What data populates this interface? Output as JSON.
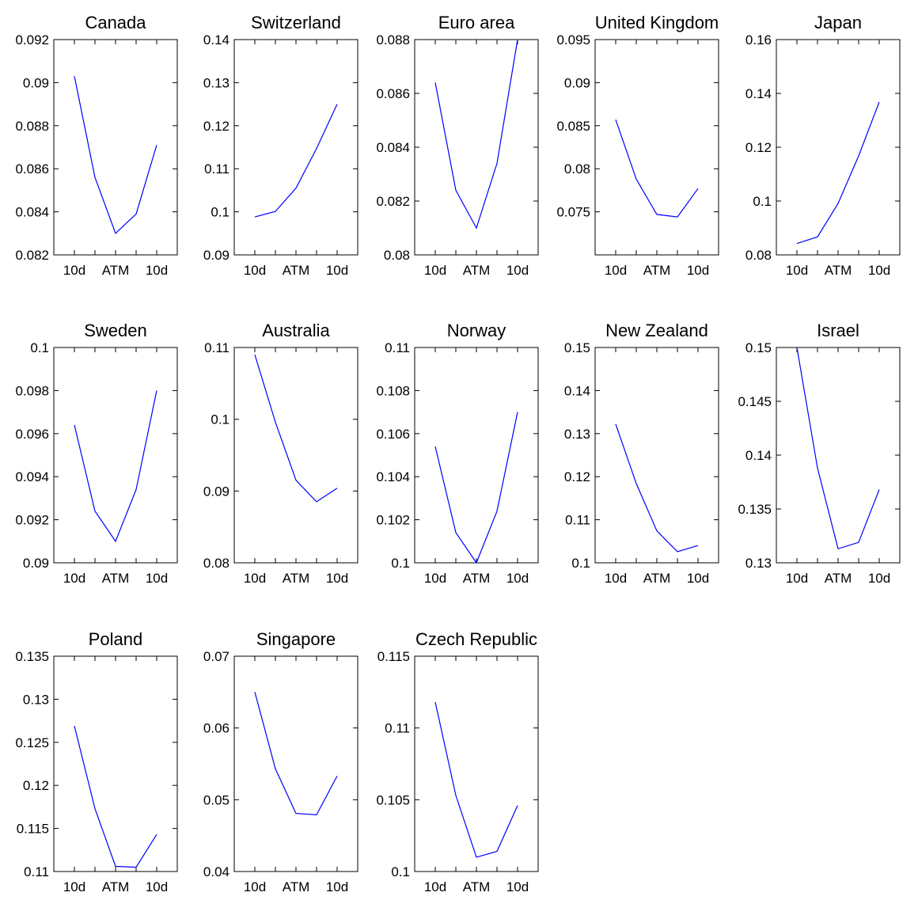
{
  "figure": {
    "line_color": "#0000ff",
    "axis_color": "#000000",
    "background": "#ffffff"
  },
  "chart_data": [
    {
      "type": "line",
      "title": "Canada",
      "categories": [
        "10d",
        "",
        "ATM",
        "",
        "10d"
      ],
      "values": [
        0.0903,
        0.0856,
        0.083,
        0.0839,
        0.0871
      ],
      "ylim": [
        0.082,
        0.092
      ],
      "yticks": [
        "0.082",
        "0.084",
        "0.086",
        "0.088",
        "0.09",
        "0.092"
      ],
      "grid": false
    },
    {
      "type": "line",
      "title": "Switzerland",
      "categories": [
        "10d",
        "",
        "ATM",
        "",
        "10d"
      ],
      "values": [
        0.0988,
        0.1001,
        0.1055,
        0.1147,
        0.125
      ],
      "ylim": [
        0.09,
        0.14
      ],
      "yticks": [
        "0.09",
        "0.1",
        "0.11",
        "0.12",
        "0.13",
        "0.14"
      ],
      "grid": false
    },
    {
      "type": "line",
      "title": "Euro area",
      "categories": [
        "10d",
        "",
        "ATM",
        "",
        "10d"
      ],
      "values": [
        0.0864,
        0.0824,
        0.081,
        0.0834,
        0.088
      ],
      "ylim": [
        0.08,
        0.088
      ],
      "yticks": [
        "0.08",
        "0.082",
        "0.084",
        "0.086",
        "0.088"
      ],
      "grid": false
    },
    {
      "type": "line",
      "title": "United Kingdom",
      "categories": [
        "10d",
        "",
        "ATM",
        "",
        "10d"
      ],
      "values": [
        0.0857,
        0.0788,
        0.0747,
        0.0744,
        0.0777
      ],
      "ylim": [
        0.07,
        0.095
      ],
      "yticks": [
        "",
        "0.075",
        "0.08",
        "0.085",
        "0.09",
        "0.095"
      ],
      "grid": false
    },
    {
      "type": "line",
      "title": "Japan",
      "categories": [
        "10d",
        "",
        "ATM",
        "",
        "10d"
      ],
      "values": [
        0.0842,
        0.0867,
        0.0991,
        0.1168,
        0.1368
      ],
      "ylim": [
        0.08,
        0.16
      ],
      "yticks": [
        "0.08",
        "0.1",
        "0.12",
        "0.14",
        "0.16"
      ],
      "grid": false
    },
    {
      "type": "line",
      "title": "Sweden",
      "categories": [
        "10d",
        "",
        "ATM",
        "",
        "10d"
      ],
      "values": [
        0.0964,
        0.0924,
        0.091,
        0.0934,
        0.098
      ],
      "ylim": [
        0.09,
        0.1
      ],
      "yticks": [
        "0.09",
        "0.092",
        "0.094",
        "0.096",
        "0.098",
        "0.1"
      ],
      "grid": false
    },
    {
      "type": "line",
      "title": "Australia",
      "categories": [
        "10d",
        "",
        "ATM",
        "",
        "10d"
      ],
      "values": [
        0.109,
        0.0996,
        0.0915,
        0.0885,
        0.0904
      ],
      "ylim": [
        0.08,
        0.11
      ],
      "yticks": [
        "0.08",
        "0.09",
        "0.1",
        "0.11"
      ],
      "grid": false
    },
    {
      "type": "line",
      "title": "Norway",
      "categories": [
        "10d",
        "",
        "ATM",
        "",
        "10d"
      ],
      "values": [
        0.1054,
        0.1014,
        0.1,
        0.1024,
        0.107
      ],
      "ylim": [
        0.1,
        0.11
      ],
      "yticks": [
        "0.1",
        "0.102",
        "0.104",
        "0.106",
        "0.108",
        "0.11"
      ],
      "grid": false
    },
    {
      "type": "line",
      "title": "New Zealand",
      "categories": [
        "10d",
        "",
        "ATM",
        "",
        "10d"
      ],
      "values": [
        0.1322,
        0.1184,
        0.1074,
        0.1026,
        0.104
      ],
      "ylim": [
        0.1,
        0.15
      ],
      "yticks": [
        "0.1",
        "0.11",
        "0.12",
        "0.13",
        "0.14",
        "0.15"
      ],
      "grid": false
    },
    {
      "type": "line",
      "title": "Israel",
      "categories": [
        "10d",
        "",
        "ATM",
        "",
        "10d"
      ],
      "values": [
        0.15,
        0.1388,
        0.1313,
        0.1319,
        0.1368
      ],
      "ylim": [
        0.13,
        0.15
      ],
      "yticks": [
        "0.13",
        "0.135",
        "0.14",
        "0.145",
        "0.15"
      ],
      "grid": false
    },
    {
      "type": "line",
      "title": "Poland",
      "categories": [
        "10d",
        "",
        "ATM",
        "",
        "10d"
      ],
      "values": [
        0.1269,
        0.1173,
        0.1106,
        0.1105,
        0.1143
      ],
      "ylim": [
        0.11,
        0.135
      ],
      "yticks": [
        "0.11",
        "0.115",
        "0.12",
        "0.125",
        "0.13",
        "0.135"
      ],
      "grid": false
    },
    {
      "type": "line",
      "title": "Singapore",
      "categories": [
        "10d",
        "",
        "ATM",
        "",
        "10d"
      ],
      "values": [
        0.065,
        0.0543,
        0.0481,
        0.0479,
        0.0533
      ],
      "ylim": [
        0.04,
        0.07
      ],
      "yticks": [
        "0.04",
        "0.05",
        "0.06",
        "0.07"
      ],
      "grid": false
    },
    {
      "type": "line",
      "title": "Czech Republic",
      "categories": [
        "10d",
        "",
        "ATM",
        "",
        "10d"
      ],
      "values": [
        0.1118,
        0.1053,
        0.101,
        0.1014,
        0.1046
      ],
      "ylim": [
        0.1,
        0.115
      ],
      "yticks": [
        "0.1",
        "0.105",
        "0.11",
        "0.115"
      ],
      "grid": false
    }
  ]
}
